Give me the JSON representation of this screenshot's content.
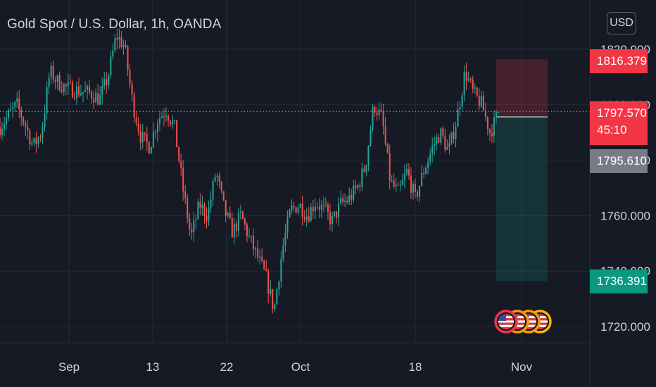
{
  "header": {
    "title": "Gold Spot / U.S. Dollar, 1h, OANDA",
    "currency": "USD"
  },
  "colors": {
    "background": "#161a25",
    "grid": "#252a37",
    "text": "#d1d4dc",
    "up": "#26a69a",
    "down": "#ef5350",
    "stop_zone": "#f23645",
    "target_zone": "#089981",
    "label_red": "#f23645",
    "label_grey": "#787b86",
    "label_green": "#089981"
  },
  "price_labels": {
    "stop": "1816.379",
    "last": "1797.570",
    "countdown": "45:10",
    "entry": "1795.610",
    "target": "1736.391"
  },
  "event_icons": [
    "us-flag-icon",
    "us-flag-icon",
    "us-flag-icon",
    "us-flag-icon"
  ],
  "chart_data": {
    "type": "candlestick",
    "title": "Gold Spot / U.S. Dollar, 1h, OANDA",
    "y_ticks": [
      1720,
      1740,
      1760,
      1780,
      1800,
      1820
    ],
    "y_tick_labels": [
      "1720.000",
      "1740.000",
      "1760.000",
      "1780.000",
      "1800.000",
      "1820.000"
    ],
    "x_ticks": [
      "Sep",
      "13",
      "22",
      "Oct",
      "18",
      "Nov"
    ],
    "ylim": [
      1712,
      1834
    ],
    "grid": true,
    "last_price": 1797.57,
    "position": {
      "type": "short",
      "entry": 1795.61,
      "stop": 1816.379,
      "target": 1736.391
    },
    "price_path": [
      [
        0.0,
        1792
      ],
      [
        0.5,
        1796
      ],
      [
        1.0,
        1800
      ],
      [
        1.5,
        1793
      ],
      [
        2.0,
        1785
      ],
      [
        2.5,
        1790
      ],
      [
        3.0,
        1812
      ],
      [
        3.5,
        1808
      ],
      [
        4.0,
        1806
      ],
      [
        5.5,
        1804
      ],
      [
        6.0,
        1802
      ],
      [
        6.5,
        1810
      ],
      [
        7.0,
        1825
      ],
      [
        7.5,
        1821
      ],
      [
        8.0,
        1800
      ],
      [
        8.5,
        1788
      ],
      [
        9.0,
        1785
      ],
      [
        9.5,
        1795
      ],
      [
        10.0,
        1798
      ],
      [
        10.5,
        1792
      ],
      [
        11.0,
        1770
      ],
      [
        11.5,
        1752
      ],
      [
        12.0,
        1764
      ],
      [
        12.5,
        1760
      ],
      [
        13.0,
        1776
      ],
      [
        13.5,
        1762
      ],
      [
        14.0,
        1754
      ],
      [
        14.5,
        1760
      ],
      [
        15.0,
        1752
      ],
      [
        15.5,
        1745
      ],
      [
        16.0,
        1738
      ],
      [
        16.5,
        1726
      ],
      [
        17.0,
        1748
      ],
      [
        17.5,
        1762
      ],
      [
        18.0,
        1764
      ],
      [
        18.5,
        1760
      ],
      [
        19.0,
        1765
      ],
      [
        19.5,
        1762
      ],
      [
        20.0,
        1758
      ],
      [
        20.5,
        1764
      ],
      [
        21.0,
        1766
      ],
      [
        21.5,
        1770
      ],
      [
        22.0,
        1778
      ],
      [
        22.5,
        1800
      ],
      [
        23.0,
        1795
      ],
      [
        23.5,
        1772
      ],
      [
        24.0,
        1768
      ],
      [
        24.5,
        1776
      ],
      [
        25.0,
        1766
      ],
      [
        25.5,
        1776
      ],
      [
        26.0,
        1784
      ],
      [
        26.5,
        1790
      ],
      [
        27.0,
        1783
      ],
      [
        27.5,
        1795
      ],
      [
        28.0,
        1812
      ],
      [
        28.5,
        1804
      ],
      [
        29.0,
        1800
      ],
      [
        29.5,
        1790
      ],
      [
        29.8,
        1794
      ],
      [
        30.0,
        1797.57
      ]
    ]
  }
}
